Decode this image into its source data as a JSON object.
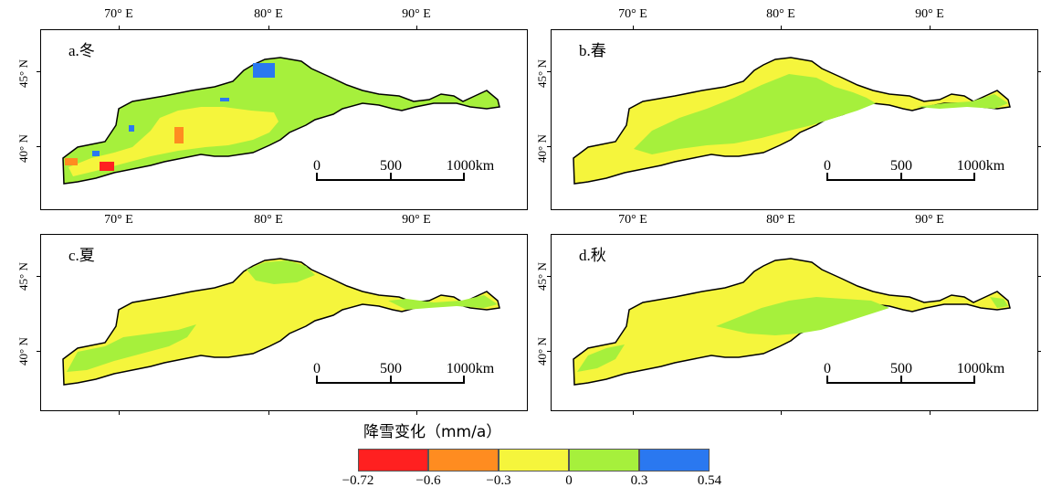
{
  "panels": [
    {
      "label": "a.冬",
      "scale": [
        "0",
        "500",
        "1000km"
      ]
    },
    {
      "label": "b.春",
      "scale": [
        "0",
        "500",
        "1000km"
      ]
    },
    {
      "label": "c.夏",
      "scale": [
        "0",
        "500",
        "1000km"
      ]
    },
    {
      "label": "d.秋",
      "scale": [
        "0",
        "500",
        "1000km"
      ]
    }
  ],
  "lon_labels": [
    "70° E",
    "80° E",
    "90° E"
  ],
  "lat_labels": [
    "45° N",
    "40° N"
  ],
  "legend": {
    "title": "降雪变化（mm/a）",
    "breaks": [
      "-0.72",
      "-0.6",
      "-0.3",
      "0",
      "0.3",
      "0.54"
    ],
    "colors": [
      "#ff2020",
      "#ff8c20",
      "#f5f53c",
      "#a6f03c",
      "#2a78f0"
    ]
  }
}
